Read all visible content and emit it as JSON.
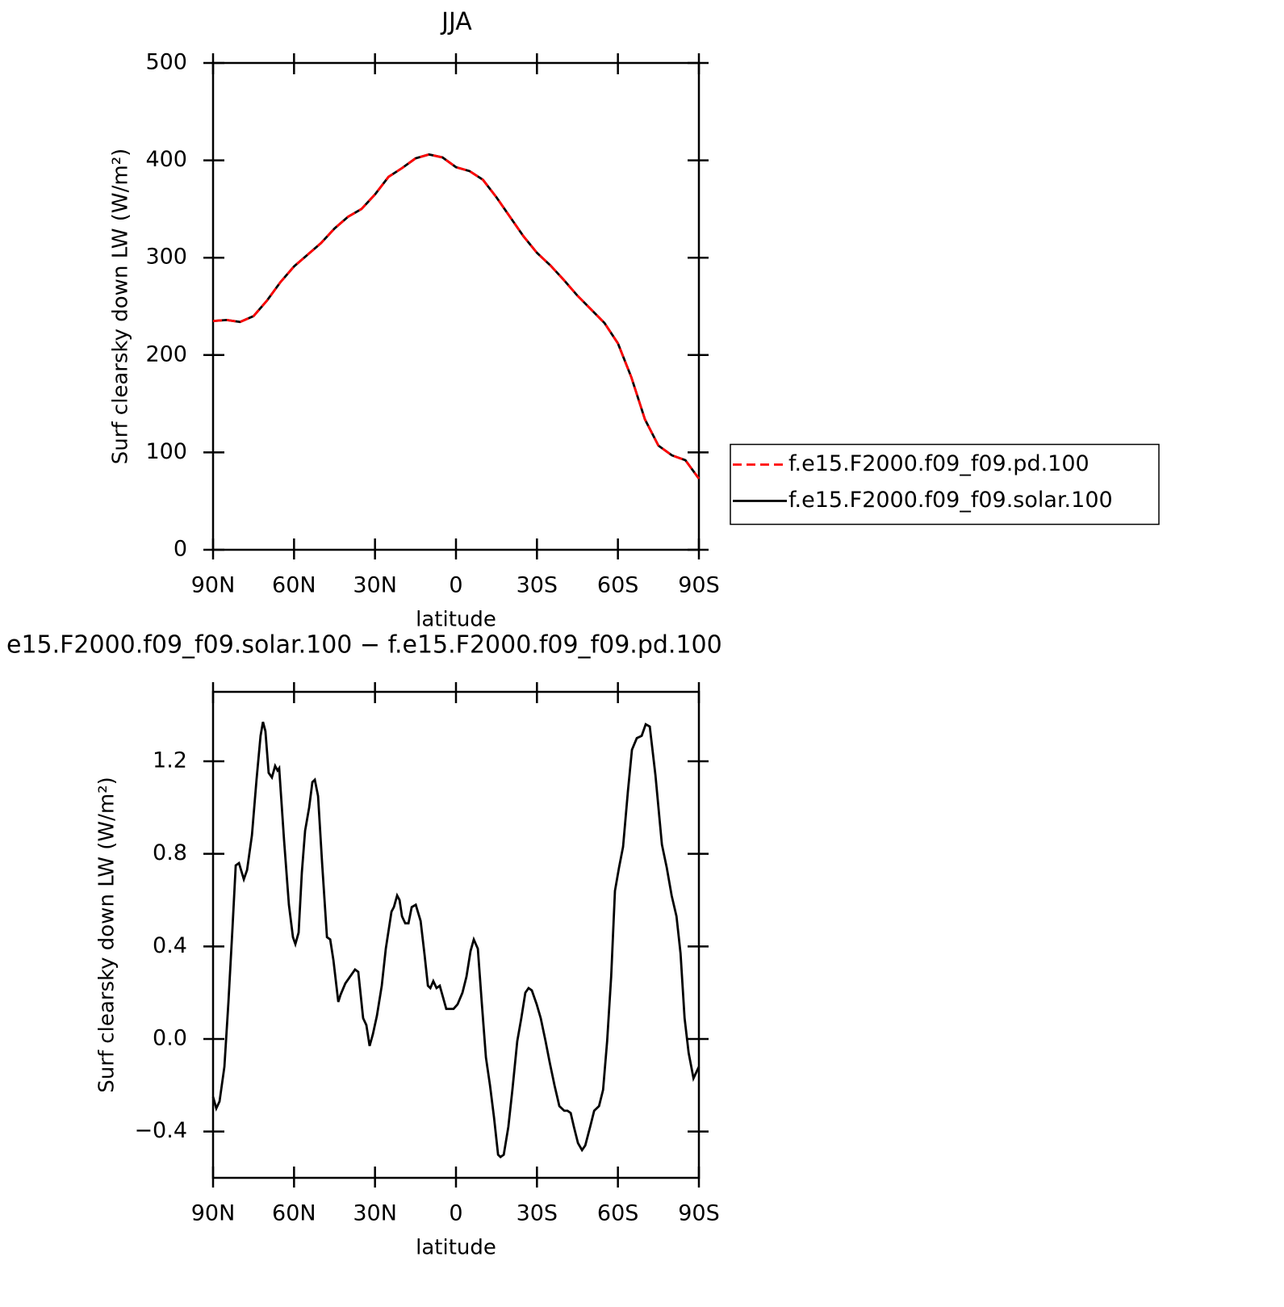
{
  "chart_data": [
    {
      "type": "line",
      "title": "JJA",
      "ylabel": "Surf clearsky down LW (W/m²)",
      "xlabel": "latitude",
      "xlim": [
        90,
        -90
      ],
      "xticks": [
        {
          "value": 90,
          "label": "90N"
        },
        {
          "value": 60,
          "label": "60N"
        },
        {
          "value": 30,
          "label": "30N"
        },
        0,
        {
          "value": -30,
          "label": "30S"
        },
        {
          "value": -60,
          "label": "60S"
        },
        {
          "value": -90,
          "label": "90S"
        }
      ],
      "ylim": [
        0,
        500
      ],
      "yticks": [
        0,
        100,
        200,
        300,
        400,
        500
      ],
      "legend": "right",
      "x": [
        90,
        85,
        80,
        75,
        70,
        65,
        60,
        55,
        50,
        45,
        40,
        35,
        30,
        25,
        20,
        15,
        10,
        5,
        0,
        -5,
        -10,
        -15,
        -20,
        -25,
        -30,
        -35,
        -40,
        -45,
        -50,
        -55,
        -60,
        -65,
        -70,
        -75,
        -80,
        -85,
        -90
      ],
      "series": [
        {
          "name": "f.e15.F2000.f09_f09.pd.100",
          "color": "#ff0000",
          "dash": true,
          "values": [
            235,
            236,
            234,
            240,
            256,
            275,
            291,
            303,
            315,
            330,
            342,
            350,
            365,
            383,
            392,
            402,
            406,
            403,
            393,
            389,
            380,
            362,
            342,
            322,
            305,
            292,
            277,
            261,
            247,
            233,
            212,
            177,
            134,
            107,
            97,
            92,
            73
          ]
        },
        {
          "name": "f.e15.F2000.f09_f09.solar.100",
          "color": "#000000",
          "dash": false,
          "values": [
            235,
            236,
            234,
            240,
            256,
            275,
            291,
            303,
            315,
            330,
            342,
            350,
            365,
            383,
            392,
            402,
            406,
            403,
            393,
            389,
            380,
            362,
            342,
            322,
            305,
            292,
            277,
            261,
            247,
            233,
            212,
            177,
            134,
            107,
            97,
            92,
            73
          ]
        }
      ]
    },
    {
      "type": "line",
      "title": "e15.F2000.f09_f09.solar.100 − f.e15.F2000.f09_f09.pd.100",
      "ylabel": "Surf clearsky down LW (W/m²)",
      "xlabel": "latitude",
      "xlim": [
        90,
        -90
      ],
      "xticks": [
        {
          "value": 90,
          "label": "90N"
        },
        {
          "value": 60,
          "label": "60N"
        },
        {
          "value": 30,
          "label": "30N"
        },
        0,
        {
          "value": -30,
          "label": "30S"
        },
        {
          "value": -60,
          "label": "60S"
        },
        {
          "value": -90,
          "label": "90S"
        }
      ],
      "ylim": [
        -0.6,
        1.5
      ],
      "yticks": [
        {
          "value": -0.4,
          "label": "−0.4"
        },
        {
          "value": 0,
          "label": "0.0"
        },
        0.4,
        0.8,
        1.2
      ],
      "color": "#000000",
      "x": [
        90,
        88.8,
        87.6,
        85.8,
        84.3,
        82.8,
        81.6,
        80.4,
        78.6,
        77.4,
        75.6,
        73.9,
        72.4,
        71.5,
        70.6,
        69.4,
        68.2,
        67,
        66.1,
        65.5,
        63.7,
        61.9,
        60.4,
        59.5,
        58.3,
        57.1,
        55.9,
        54.4,
        53.2,
        52.3,
        51.1,
        49.6,
        47.8,
        46.6,
        45.4,
        43.6,
        42.8,
        41,
        39.8,
        37.4,
        36.2,
        34.4,
        33.2,
        32,
        30.8,
        29.3,
        27.5,
        26,
        23.9,
        23,
        21.8,
        20.9,
        20,
        18.8,
        17.6,
        16.4,
        14.9,
        13.1,
        11.6,
        10.4,
        9.5,
        8.4,
        7.2,
        6,
        4.8,
        3.6,
        2.1,
        0.9,
        -0.6,
        -2.4,
        -3.9,
        -5.4,
        -6.6,
        -8.1,
        -9.6,
        -11.1,
        -12.6,
        -14.1,
        -15.6,
        -16.5,
        -17.7,
        -19.4,
        -20.9,
        -22.7,
        -24.2,
        -25.7,
        -26.9,
        -28.1,
        -29.9,
        -31.4,
        -33.2,
        -34.7,
        -36.5,
        -38.3,
        -40.1,
        -41.3,
        -42.5,
        -43.7,
        -45.2,
        -46.7,
        -47.9,
        -49.7,
        -51.2,
        -53,
        -54.5,
        -56,
        -57.5,
        -58.9,
        -60.4,
        -61.9,
        -63.7,
        -65.2,
        -67,
        -68.8,
        -70.3,
        -71.8,
        -73.9,
        -76.3,
        -78.1,
        -79.9,
        -81.7,
        -83.2,
        -84.7,
        -86.2,
        -88,
        -90
      ],
      "values": [
        -0.25,
        -0.3,
        -0.27,
        -0.12,
        0.16,
        0.48,
        0.75,
        0.76,
        0.69,
        0.73,
        0.88,
        1.12,
        1.31,
        1.37,
        1.33,
        1.15,
        1.13,
        1.18,
        1.16,
        1.17,
        0.86,
        0.58,
        0.44,
        0.41,
        0.46,
        0.72,
        0.9,
        1.0,
        1.11,
        1.12,
        1.05,
        0.76,
        0.44,
        0.43,
        0.34,
        0.16,
        0.19,
        0.24,
        0.26,
        0.3,
        0.29,
        0.09,
        0.06,
        -0.03,
        0.02,
        0.1,
        0.23,
        0.39,
        0.55,
        0.57,
        0.62,
        0.6,
        0.53,
        0.5,
        0.5,
        0.57,
        0.58,
        0.51,
        0.36,
        0.23,
        0.22,
        0.25,
        0.22,
        0.23,
        0.18,
        0.13,
        0.13,
        0.13,
        0.15,
        0.2,
        0.27,
        0.38,
        0.43,
        0.39,
        0.15,
        -0.08,
        -0.2,
        -0.34,
        -0.5,
        -0.51,
        -0.5,
        -0.38,
        -0.22,
        -0.01,
        0.09,
        0.2,
        0.22,
        0.21,
        0.15,
        0.09,
        -0.01,
        -0.1,
        -0.2,
        -0.29,
        -0.31,
        -0.31,
        -0.32,
        -0.38,
        -0.45,
        -0.48,
        -0.46,
        -0.38,
        -0.31,
        -0.29,
        -0.22,
        -0.01,
        0.27,
        0.64,
        0.74,
        0.83,
        1.07,
        1.25,
        1.3,
        1.31,
        1.36,
        1.35,
        1.14,
        0.84,
        0.74,
        0.62,
        0.53,
        0.37,
        0.09,
        -0.06,
        -0.17,
        -0.12
      ]
    }
  ]
}
